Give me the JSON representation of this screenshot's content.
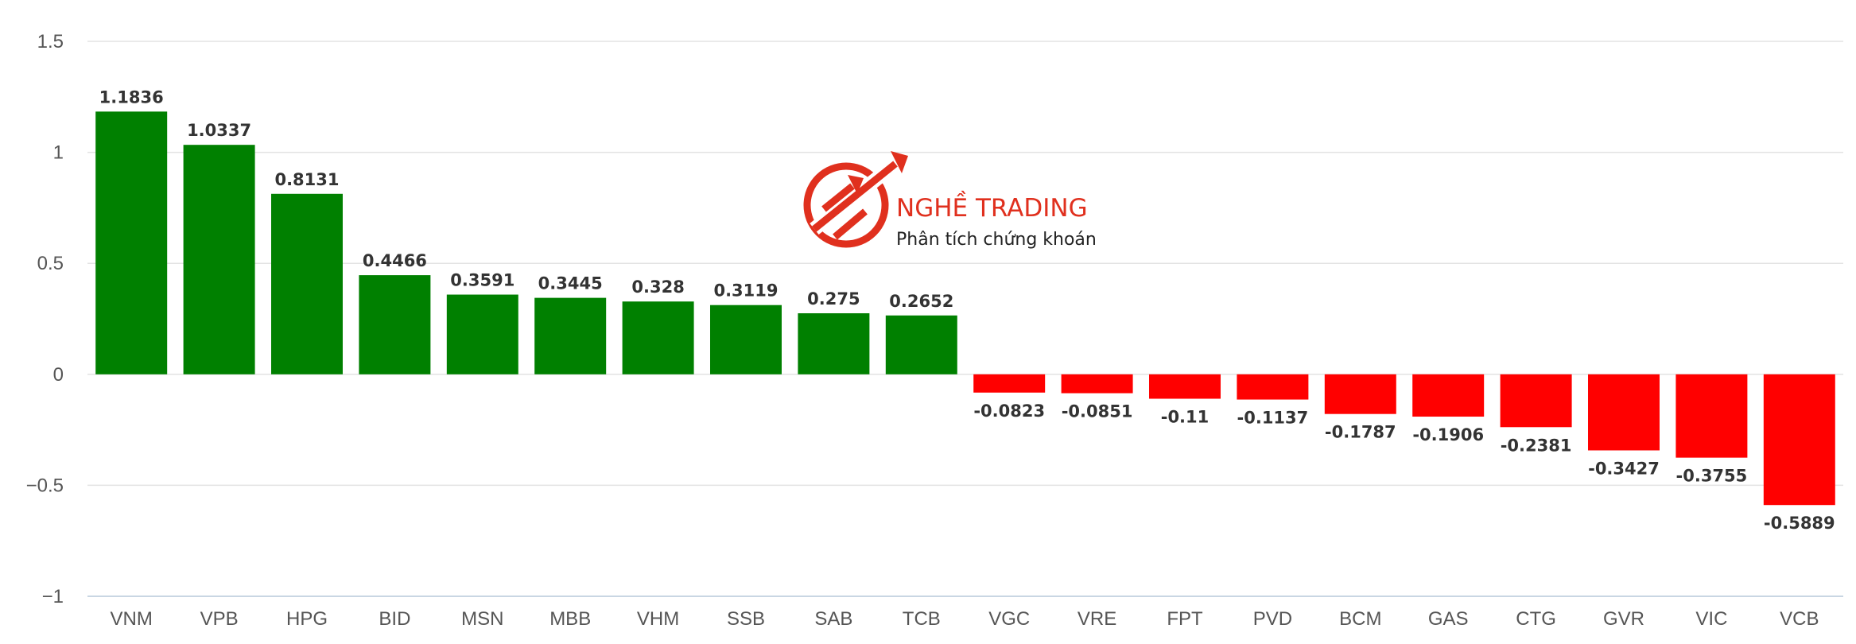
{
  "chart_data": {
    "type": "bar",
    "categories": [
      "VNM",
      "VPB",
      "HPG",
      "BID",
      "MSN",
      "MBB",
      "VHM",
      "SSB",
      "SAB",
      "TCB",
      "VGC",
      "VRE",
      "FPT",
      "PVD",
      "BCM",
      "GAS",
      "CTG",
      "GVR",
      "VIC",
      "VCB"
    ],
    "values": [
      1.1836,
      1.0337,
      0.8131,
      0.4466,
      0.3591,
      0.3445,
      0.328,
      0.3119,
      0.275,
      0.2652,
      -0.0823,
      -0.0851,
      -0.11,
      -0.1137,
      -0.1787,
      -0.1906,
      -0.2381,
      -0.3427,
      -0.3755,
      -0.5889
    ],
    "value_labels": [
      "1.1836",
      "1.0337",
      "0.8131",
      "0.4466",
      "0.3591",
      "0.3445",
      "0.328",
      "0.3119",
      "0.275",
      "0.2652",
      "-0.0823",
      "-0.0851",
      "-0.11",
      "-0.1137",
      "-0.1787",
      "-0.1906",
      "-0.2381",
      "-0.3427",
      "-0.3755",
      "-0.5889"
    ],
    "yticks": [
      "1.5",
      "1",
      "0.5",
      "0",
      "−0.5",
      "−1"
    ],
    "ytick_values": [
      1.5,
      1,
      0.5,
      0,
      -0.5,
      -1
    ],
    "ylim": [
      -1,
      1.5
    ],
    "grid": true,
    "legend": "none",
    "colors": {
      "positive": "#008000",
      "negative": "#ff0000"
    }
  },
  "watermark": {
    "name": "NGHỀ TRADING",
    "tagline": "Phân tích chứng khoán",
    "color": "#e0301e"
  }
}
